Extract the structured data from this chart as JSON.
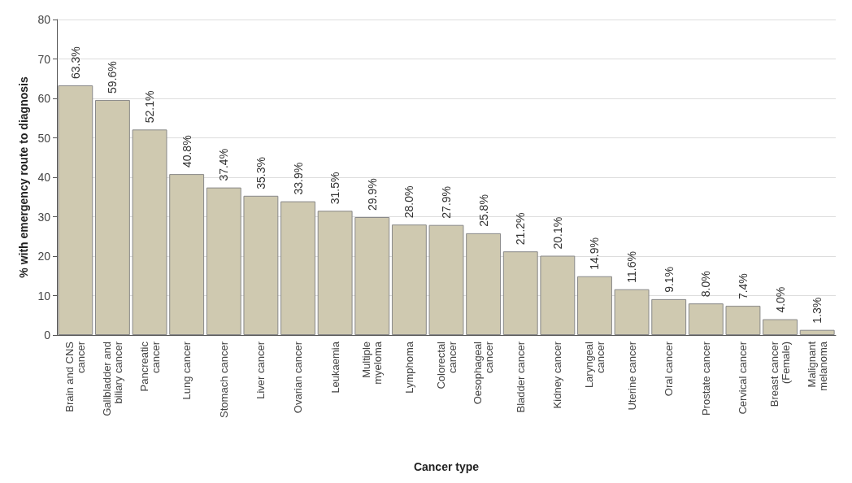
{
  "chart_data": {
    "type": "bar",
    "xlabel": "Cancer type",
    "ylabel": "% with emergency route to diagnosis",
    "categories": [
      "Brain and CNS\ncancer",
      "Gallbladder and\nbiliary cancer",
      "Pancreatic\ncancer",
      "Lung cancer",
      "Stomach cancer",
      "Liver cancer",
      "Ovarian cancer",
      "Leukaemia",
      "Multiple\nmyeloma",
      "Lymphoma",
      "Colorectal\ncancer",
      "Oesophageal\ncancer",
      "Bladder cancer",
      "Kidney cancer",
      "Laryngeal\ncancer",
      "Uterine cancer",
      "Oral cancer",
      "Prostate cancer",
      "Cervical cancer",
      "Breast cancer\n(Female)",
      "Malignant\nmelanoma"
    ],
    "values": [
      63.3,
      59.6,
      52.1,
      40.8,
      37.4,
      35.3,
      33.9,
      31.5,
      29.9,
      28.0,
      27.9,
      25.8,
      21.2,
      20.1,
      14.9,
      11.6,
      9.1,
      8.0,
      7.4,
      4.0,
      1.3
    ],
    "value_labels": [
      "63.3%",
      "59.6%",
      "52.1%",
      "40.8%",
      "37.4%",
      "35.3%",
      "33.9%",
      "31.5%",
      "29.9%",
      "28.0%",
      "27.9%",
      "25.8%",
      "21.2%",
      "20.1%",
      "14.9%",
      "11.6%",
      "9.1%",
      "8.0%",
      "7.4%",
      "4.0%",
      "1.3%"
    ],
    "color": "#cfc9b0",
    "ylim": [
      0,
      80
    ],
    "yticks": [
      0,
      10,
      20,
      30,
      40,
      50,
      60,
      70,
      80
    ],
    "grid": "y"
  }
}
